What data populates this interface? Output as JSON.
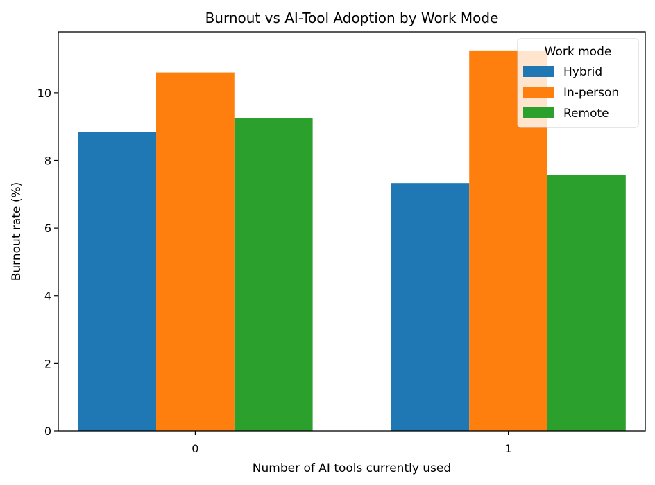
{
  "chart_data": {
    "type": "bar",
    "title": "Burnout vs AI-Tool Adoption by Work Mode",
    "xlabel": "Number of AI tools currently used",
    "ylabel": "Burnout rate (%)",
    "categories": [
      "0",
      "1"
    ],
    "series": [
      {
        "name": "Hybrid",
        "color": "#1f77b4",
        "values": [
          8.83,
          7.33
        ]
      },
      {
        "name": "In-person",
        "color": "#ff7f0e",
        "values": [
          10.6,
          11.25
        ]
      },
      {
        "name": "Remote",
        "color": "#2ca02c",
        "values": [
          9.24,
          7.58
        ]
      }
    ],
    "ylim": [
      0,
      11.8
    ],
    "yticks": [
      0,
      2,
      4,
      6,
      8,
      10
    ],
    "grid": false,
    "legend": {
      "title": "Work mode",
      "placement": "top-right"
    }
  }
}
